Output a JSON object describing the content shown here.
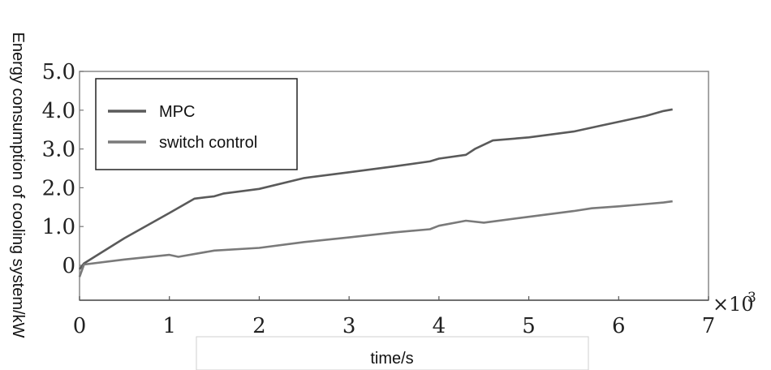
{
  "chart_data": {
    "type": "line",
    "title": "",
    "xlabel": "time/s",
    "ylabel": "Energy consumption of cooling system/kW",
    "x_multiplier": "×10",
    "x_multiplier_exp": "3",
    "xlim": [
      0,
      7
    ],
    "ylim": [
      -0.9,
      5.0
    ],
    "x_ticks": [
      "0",
      "1",
      "2",
      "3",
      "4",
      "5",
      "6",
      "7"
    ],
    "y_ticks": [
      "0",
      "1.0",
      "2.0",
      "3.0",
      "4.0",
      "5.0"
    ],
    "grid": false,
    "legend_position": "top-left",
    "series": [
      {
        "name": "MPC",
        "color": "#5a5a5a",
        "x": [
          0,
          0.05,
          0.5,
          1.0,
          1.28,
          1.5,
          1.6,
          2.0,
          2.5,
          3.0,
          3.5,
          3.9,
          4.0,
          4.3,
          4.4,
          4.6,
          5.0,
          5.5,
          5.8,
          6.0,
          6.3,
          6.5,
          6.6
        ],
        "values": [
          -0.1,
          0.05,
          0.7,
          1.35,
          1.72,
          1.78,
          1.85,
          1.97,
          2.25,
          2.4,
          2.55,
          2.68,
          2.75,
          2.85,
          3.0,
          3.22,
          3.3,
          3.45,
          3.6,
          3.7,
          3.85,
          3.98,
          4.02
        ]
      },
      {
        "name": "switch control",
        "color": "#7a7a7a",
        "x": [
          0,
          0.05,
          0.5,
          1.0,
          1.1,
          1.5,
          2.0,
          2.5,
          3.0,
          3.5,
          3.9,
          4.0,
          4.3,
          4.5,
          5.0,
          5.5,
          5.7,
          6.0,
          6.3,
          6.5,
          6.6
        ],
        "values": [
          -0.3,
          0.02,
          0.15,
          0.27,
          0.22,
          0.38,
          0.45,
          0.6,
          0.72,
          0.85,
          0.93,
          1.02,
          1.15,
          1.1,
          1.25,
          1.4,
          1.47,
          1.52,
          1.58,
          1.62,
          1.65
        ]
      }
    ]
  }
}
